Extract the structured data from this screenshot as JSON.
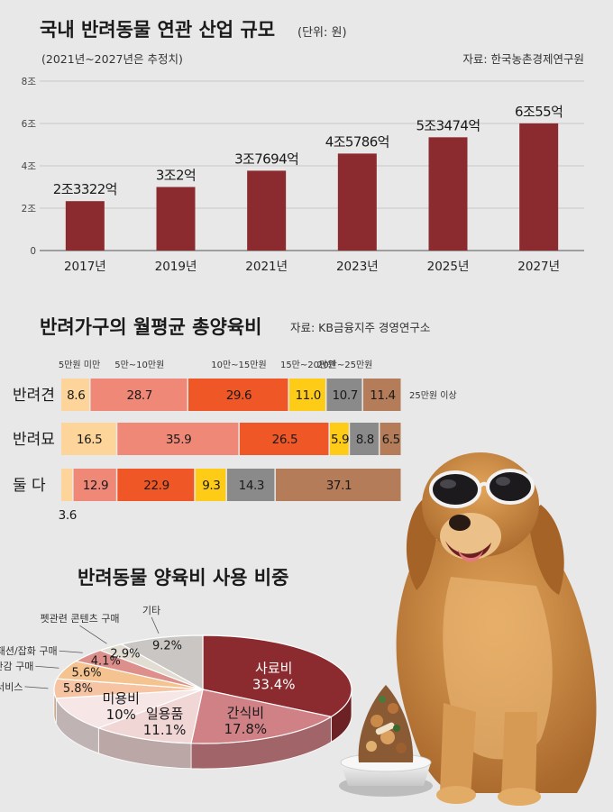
{
  "colors": {
    "bar": "#8b2b2f",
    "seg": [
      "#fdd59a",
      "#f08877",
      "#ef5727",
      "#fecb17",
      "#8a8a8a",
      "#b47c58"
    ],
    "pie": [
      "#8b2b2f",
      "#cf8186",
      "#f1d6d6",
      "#f6e6e6",
      "#f6c4a3",
      "#f4c38f",
      "#dd8f8b",
      "#e1ddd2",
      "#c9c6c4"
    ]
  },
  "chart_data": [
    {
      "type": "bar",
      "title": "국내 반려동물 연관 산업 규모",
      "unit": "(단위: 원)",
      "note": "(2021년~2027년은 추정치)",
      "source": "자료: 한국농촌경제연구원",
      "categories": [
        "2017년",
        "2019년",
        "2021년",
        "2023년",
        "2025년",
        "2027년"
      ],
      "values": [
        2.3322,
        3.0002,
        3.7694,
        4.5786,
        5.3474,
        6.0055
      ],
      "data_labels": [
        "2조3322억",
        "3조2억",
        "3조7694억",
        "4조5786억",
        "5조3474억",
        "6조55억"
      ],
      "y_ticks": [
        0,
        2,
        4,
        6,
        8
      ],
      "y_tick_labels": [
        "0",
        "2조",
        "4조",
        "6조",
        "8조"
      ],
      "ylim": [
        0,
        8
      ]
    },
    {
      "type": "bar",
      "stacked": true,
      "orientation": "horizontal",
      "title": "반려가구의 월평균 총양육비",
      "source": "자료: KB금융지주 경영연구소",
      "categories": [
        "반려견",
        "반려묘",
        "둘 다"
      ],
      "legend": [
        "5만원 미만",
        "5만~10만원",
        "10만~15만원",
        "15만~20만원",
        "20만~25만원",
        "25만원 이상"
      ],
      "series": [
        {
          "name": "5만원 미만",
          "values": [
            8.6,
            16.5,
            3.6
          ]
        },
        {
          "name": "5만~10만원",
          "values": [
            28.7,
            35.9,
            12.9
          ]
        },
        {
          "name": "10만~15만원",
          "values": [
            29.6,
            26.5,
            22.9
          ]
        },
        {
          "name": "15만~20만원",
          "values": [
            11.0,
            5.9,
            9.3
          ]
        },
        {
          "name": "20만~25만원",
          "values": [
            10.7,
            8.8,
            14.3
          ]
        },
        {
          "name": "25만원 이상",
          "values": [
            11.4,
            6.5,
            37.1
          ]
        }
      ],
      "value_labels": [
        [
          "8.6",
          "28.7",
          "29.6",
          "11.0",
          "10.7",
          "11.4"
        ],
        [
          "16.5",
          "35.9",
          "26.5",
          "5.9",
          "8.8",
          "6.5"
        ],
        [
          "3.6",
          "12.9",
          "22.9",
          "9.3",
          "14.3",
          "37.1"
        ]
      ]
    },
    {
      "type": "pie",
      "title": "반려동물 양육비 사용 비중",
      "slices": [
        {
          "label": "사료비",
          "value": 33.4,
          "pct": "33.4%"
        },
        {
          "label": "간식비",
          "value": 17.8,
          "pct": "17.8%"
        },
        {
          "label": "일용품",
          "value": 11.1,
          "pct": "11.1%"
        },
        {
          "label": "미용비",
          "value": 10.0,
          "pct": "10%"
        },
        {
          "label": "위생서비스",
          "value": 5.8,
          "pct": "5.8%"
        },
        {
          "label": "장난감 구매",
          "value": 5.6,
          "pct": "5.6%"
        },
        {
          "label": "패션/잡화 구매",
          "value": 4.1,
          "pct": "4.1%"
        },
        {
          "label": "펫관련 콘텐츠 구매",
          "value": 2.9,
          "pct": "2.9%"
        },
        {
          "label": "기타",
          "value": 9.2,
          "pct": "9.2%"
        }
      ]
    }
  ]
}
